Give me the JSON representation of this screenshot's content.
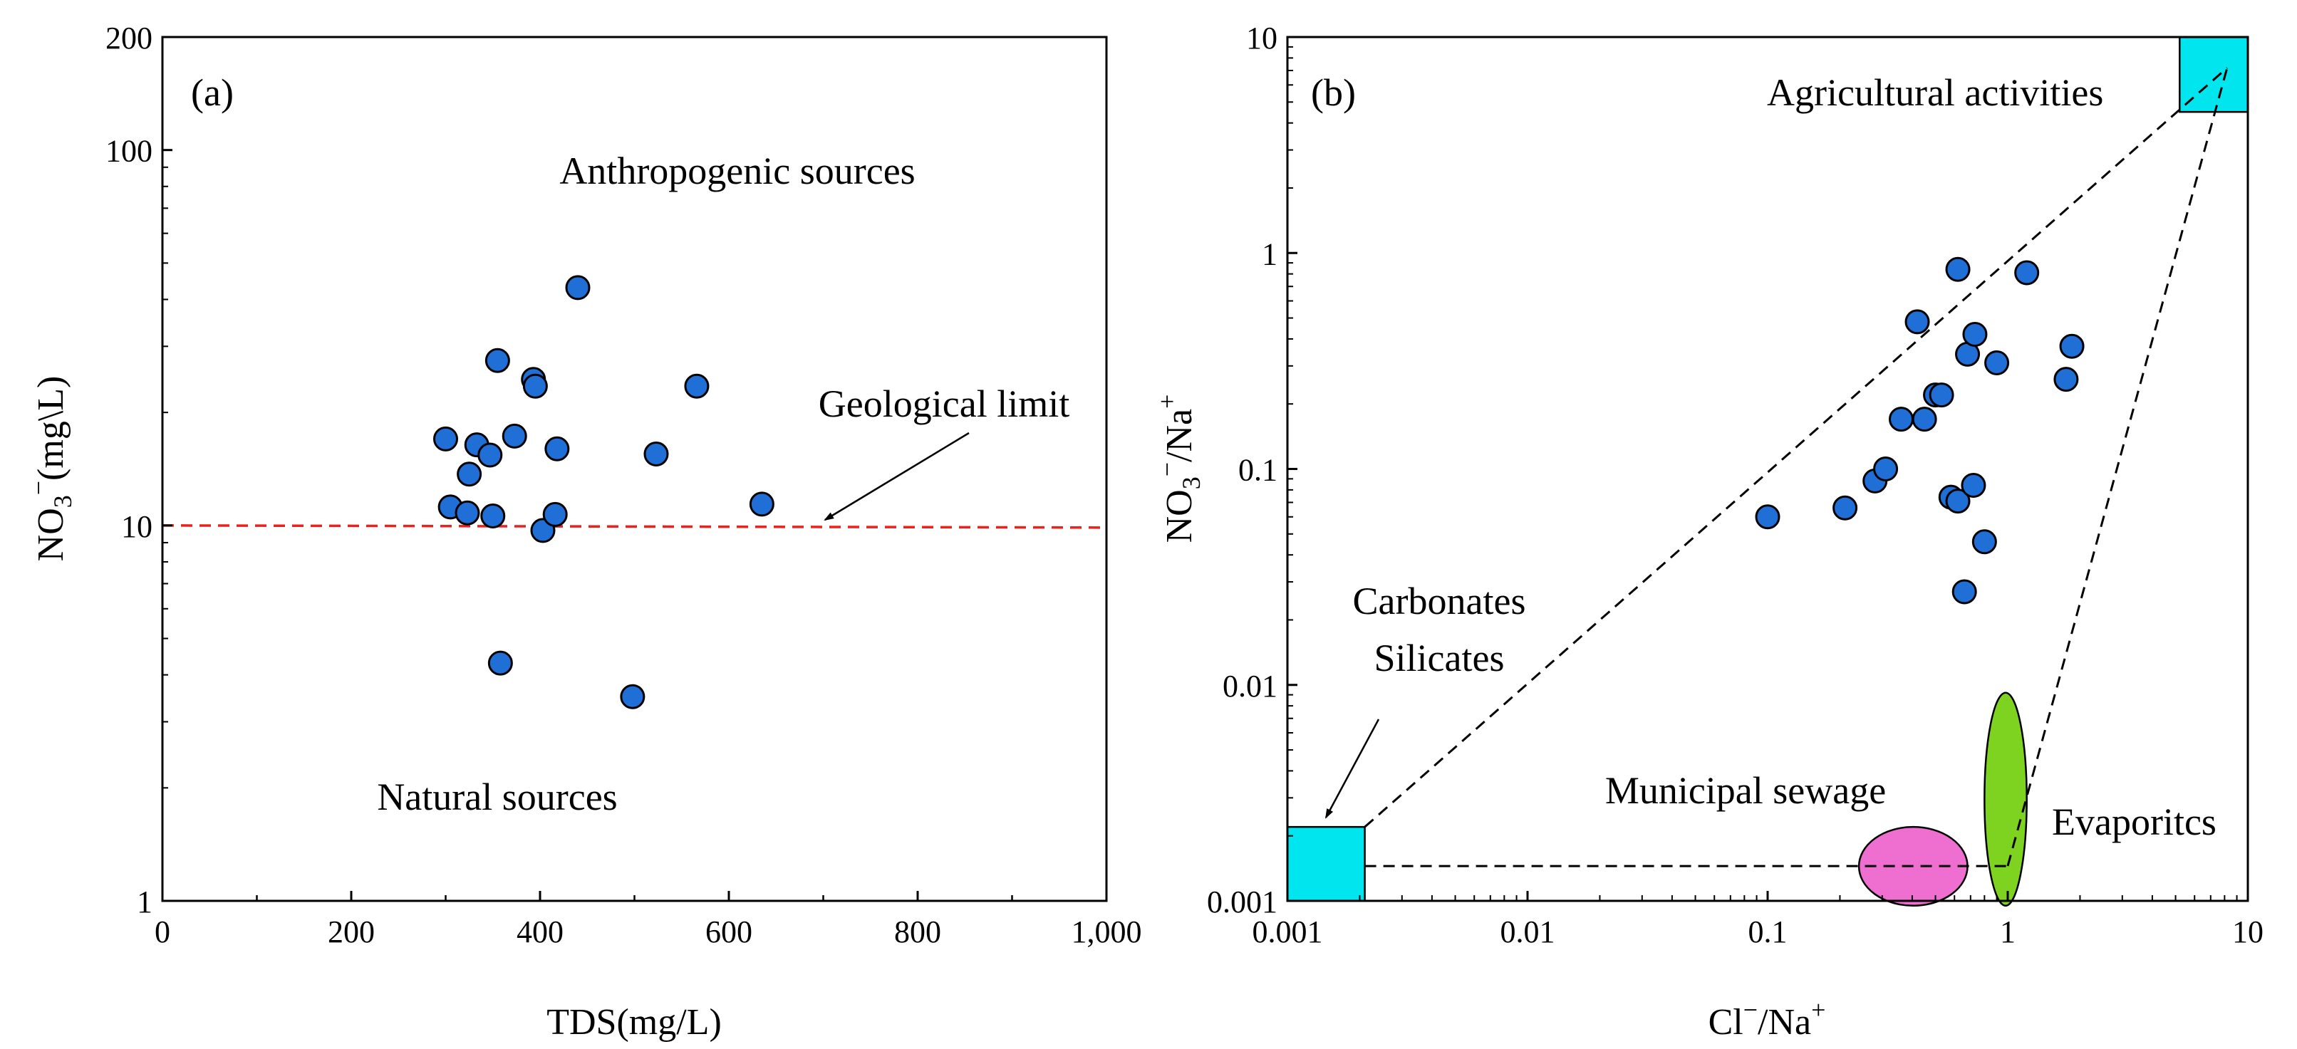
{
  "chart_data": [
    {
      "panel": "(a)",
      "type": "scatter",
      "xlabel": "TDS(mg/L)",
      "ylabel_main": "NO",
      "ylabel_sub": "3",
      "ylabel_sup": "−",
      "ylabel_rest": "(mg\\L)",
      "x_scale": "linear",
      "y_scale": "log",
      "xlim": [
        0,
        1000
      ],
      "ylim": [
        1,
        200
      ],
      "x_ticks": [
        0,
        200,
        400,
        600,
        800,
        1000
      ],
      "x_tick_labels": [
        "0",
        "200",
        "400",
        "600",
        "800",
        "1,000"
      ],
      "y_ticks": [
        1,
        10,
        100,
        200
      ],
      "y_tick_labels": [
        "1",
        "10",
        "100",
        "200"
      ],
      "reference_line": {
        "y": 10,
        "color": "#e8231e",
        "style": "dashed",
        "label": "Geological limit"
      },
      "annotations": [
        {
          "text": "Anthropogenic sources"
        },
        {
          "text": "Natural sources"
        }
      ],
      "marker_color": "#1f6fd6",
      "points": [
        {
          "x": 300,
          "y": 17
        },
        {
          "x": 305,
          "y": 11.2
        },
        {
          "x": 323,
          "y": 10.8
        },
        {
          "x": 325,
          "y": 13.7
        },
        {
          "x": 333,
          "y": 16.4
        },
        {
          "x": 347,
          "y": 15.4
        },
        {
          "x": 350,
          "y": 10.6
        },
        {
          "x": 355,
          "y": 27.5
        },
        {
          "x": 358,
          "y": 4.3
        },
        {
          "x": 373,
          "y": 17.3
        },
        {
          "x": 393,
          "y": 24.5
        },
        {
          "x": 395,
          "y": 23.5
        },
        {
          "x": 403,
          "y": 9.7
        },
        {
          "x": 416,
          "y": 10.7
        },
        {
          "x": 418,
          "y": 16
        },
        {
          "x": 440,
          "y": 43
        },
        {
          "x": 498,
          "y": 3.5
        },
        {
          "x": 523,
          "y": 15.5
        },
        {
          "x": 566,
          "y": 23.5
        },
        {
          "x": 635,
          "y": 11.4
        }
      ]
    },
    {
      "panel": "(b)",
      "type": "scatter",
      "xlabel_main": "Cl",
      "xlabel_sup": "−",
      "xlabel_rest": "/Na",
      "xlabel_sup2": "+",
      "ylabel_main": "NO",
      "ylabel_sub": "3",
      "ylabel_sup": "−",
      "ylabel_rest": "/Na",
      "ylabel_sup2": "+",
      "x_scale": "log",
      "y_scale": "log",
      "xlim": [
        0.001,
        10
      ],
      "ylim": [
        0.001,
        10
      ],
      "x_ticks": [
        0.001,
        0.01,
        0.1,
        1,
        10
      ],
      "x_tick_labels": [
        "0.001",
        "0.01",
        "0.1",
        "1",
        "10"
      ],
      "y_ticks": [
        0.001,
        0.01,
        0.1,
        1,
        10
      ],
      "y_tick_labels": [
        "0.001",
        "0.01",
        "0.1",
        "1",
        "10"
      ],
      "end_members": [
        {
          "label": "Agricultural activities",
          "shape": "square",
          "color": "#00e5ee",
          "x_range": [
            5.2,
            10
          ],
          "y_range": [
            4.5,
            10
          ]
        },
        {
          "label_lines": [
            "Carbonates",
            "Silicates"
          ],
          "shape": "square",
          "color": "#00e5ee",
          "x_range": [
            0.001,
            0.0021
          ],
          "y_range": [
            0.001,
            0.0022
          ]
        },
        {
          "label": "Municipal sewage",
          "shape": "ellipse",
          "color": "#ee6fd0",
          "x_range": [
            0.24,
            0.68
          ],
          "y_range": [
            0.00095,
            0.0022
          ]
        },
        {
          "label": "Evaporitcs",
          "shape": "ellipse",
          "color": "#7ed321",
          "x_range": [
            0.8,
            1.2
          ],
          "y_range": [
            0.00095,
            0.0092
          ]
        }
      ],
      "mixing_lines": [
        {
          "from": [
            0.0021,
            0.0022
          ],
          "to": [
            8.2,
            7.2
          ]
        },
        {
          "from": [
            0.0021,
            0.00145
          ],
          "to": [
            1.0,
            0.00145
          ]
        },
        {
          "from": [
            1.0,
            0.00145
          ],
          "to": [
            8.2,
            7.2
          ]
        }
      ],
      "marker_color": "#1f6fd6",
      "points": [
        {
          "x": 0.1,
          "y": 0.06
        },
        {
          "x": 0.21,
          "y": 0.066
        },
        {
          "x": 0.28,
          "y": 0.088
        },
        {
          "x": 0.31,
          "y": 0.1
        },
        {
          "x": 0.36,
          "y": 0.17
        },
        {
          "x": 0.42,
          "y": 0.48
        },
        {
          "x": 0.45,
          "y": 0.17
        },
        {
          "x": 0.5,
          "y": 0.22
        },
        {
          "x": 0.53,
          "y": 0.22
        },
        {
          "x": 0.58,
          "y": 0.074
        },
        {
          "x": 0.62,
          "y": 0.071
        },
        {
          "x": 0.62,
          "y": 0.84
        },
        {
          "x": 0.66,
          "y": 0.027
        },
        {
          "x": 0.68,
          "y": 0.34
        },
        {
          "x": 0.72,
          "y": 0.084
        },
        {
          "x": 0.73,
          "y": 0.42
        },
        {
          "x": 0.8,
          "y": 0.046
        },
        {
          "x": 0.9,
          "y": 0.31
        },
        {
          "x": 1.2,
          "y": 0.81
        },
        {
          "x": 1.75,
          "y": 0.26
        },
        {
          "x": 1.85,
          "y": 0.37
        }
      ]
    }
  ]
}
